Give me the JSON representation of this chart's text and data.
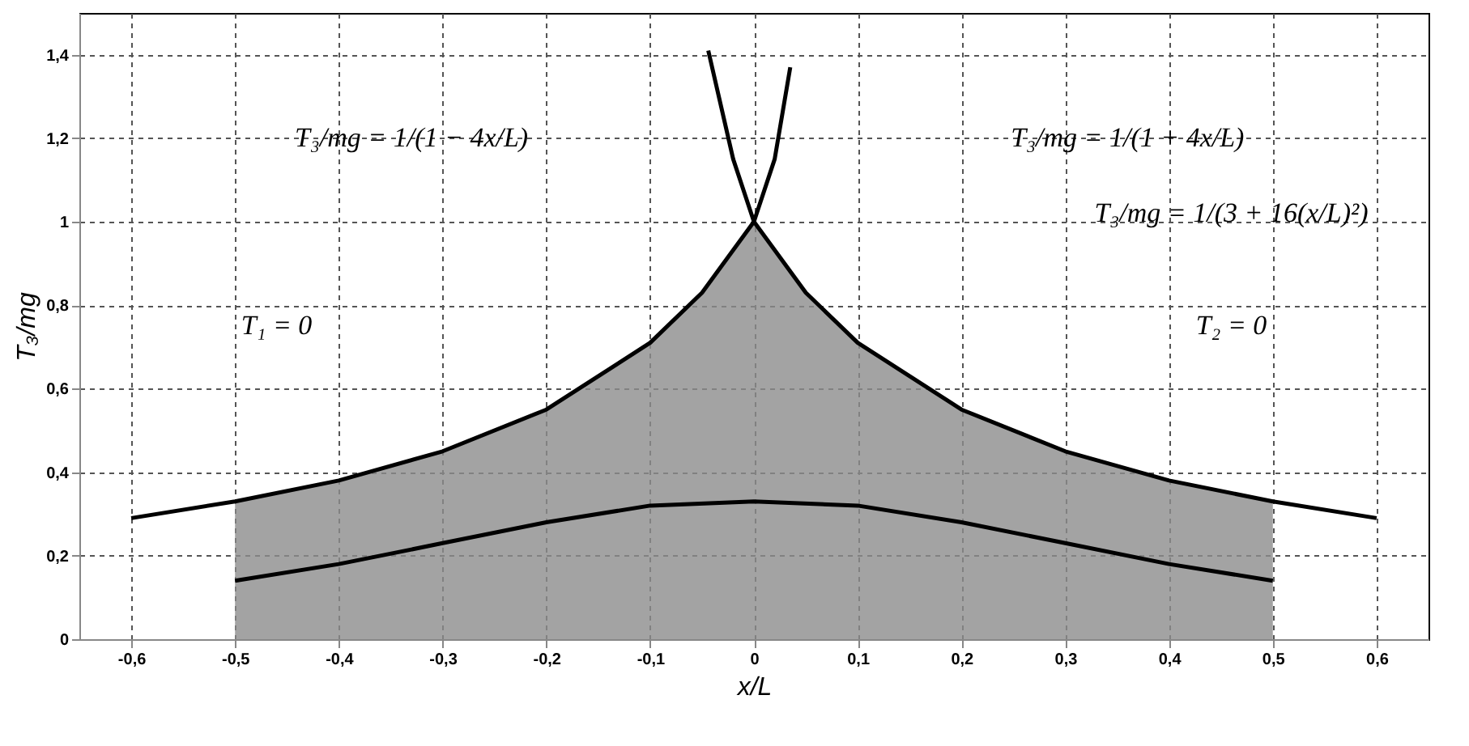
{
  "chart_data": {
    "type": "line",
    "xlabel": "x/L",
    "ylabel": "T₃/mg",
    "xlim": [
      -0.65,
      0.65
    ],
    "ylim": [
      0,
      1.5
    ],
    "xticks": [
      {
        "value": -0.6,
        "label": "-0,6"
      },
      {
        "value": -0.5,
        "label": "-0,5"
      },
      {
        "value": -0.4,
        "label": "-0,4"
      },
      {
        "value": -0.3,
        "label": "-0,3"
      },
      {
        "value": -0.2,
        "label": "-0,2"
      },
      {
        "value": -0.1,
        "label": "-0,1"
      },
      0,
      {
        "value": 0.1,
        "label": "0,1"
      },
      {
        "value": 0.2,
        "label": "0,2"
      },
      {
        "value": 0.3,
        "label": "0,3"
      },
      {
        "value": 0.4,
        "label": "0,4"
      },
      {
        "value": 0.5,
        "label": "0,5"
      },
      {
        "value": 0.6,
        "label": "0,6"
      }
    ],
    "yticks": [
      0,
      {
        "value": 0.2,
        "label": "0,2"
      },
      {
        "value": 0.4,
        "label": "0,4"
      },
      {
        "value": 0.6,
        "label": "0,6"
      },
      {
        "value": 0.8,
        "label": "0,8"
      },
      1,
      {
        "value": 1.2,
        "label": "1,2"
      },
      {
        "value": 1.4,
        "label": "1,4"
      }
    ],
    "grid": true,
    "series": [
      {
        "type": "area",
        "color": "#8c8c8c",
        "x": [
          -0.5,
          -0.4,
          -0.3,
          -0.2,
          -0.1,
          -0.05,
          0,
          0.05,
          0.1,
          0.2,
          0.3,
          0.4,
          0.5
        ],
        "values": [
          0.33,
          0.38,
          0.45,
          0.55,
          0.71,
          0.83,
          1,
          0.83,
          0.71,
          0.55,
          0.45,
          0.38,
          0.33
        ]
      },
      {
        "type": "line",
        "color": "#000000",
        "x": [
          -0.6,
          -0.5,
          -0.4,
          -0.3,
          -0.2,
          -0.1,
          -0.05,
          0,
          0.02,
          0.035
        ],
        "values": [
          0.29,
          0.33,
          0.38,
          0.45,
          0.55,
          0.71,
          0.83,
          1,
          1.15,
          1.37
        ]
      },
      {
        "type": "line",
        "color": "#000000",
        "x": [
          -0.044,
          -0.02,
          0,
          0.05,
          0.1,
          0.2,
          0.3,
          0.4,
          0.5,
          0.6
        ],
        "values": [
          1.41,
          1.15,
          1,
          0.83,
          0.71,
          0.55,
          0.45,
          0.38,
          0.33,
          0.29
        ]
      },
      {
        "type": "line",
        "color": "#000000",
        "x": [
          -0.5,
          -0.4,
          -0.3,
          -0.2,
          -0.1,
          0,
          0.1,
          0.2,
          0.3,
          0.4,
          0.5
        ],
        "values": [
          0.14,
          0.18,
          0.23,
          0.28,
          0.32,
          0.33,
          0.32,
          0.28,
          0.23,
          0.18,
          0.14
        ]
      }
    ],
    "annotations": [
      "T₃/mg = 1/(1 − 4x/L)",
      "T₁ = 0",
      "T₃/mg = 1/(1 + 4x/L)",
      "T₂ = 0",
      "T₃/mg = 1/(3 + 16(x/L)²)"
    ]
  }
}
